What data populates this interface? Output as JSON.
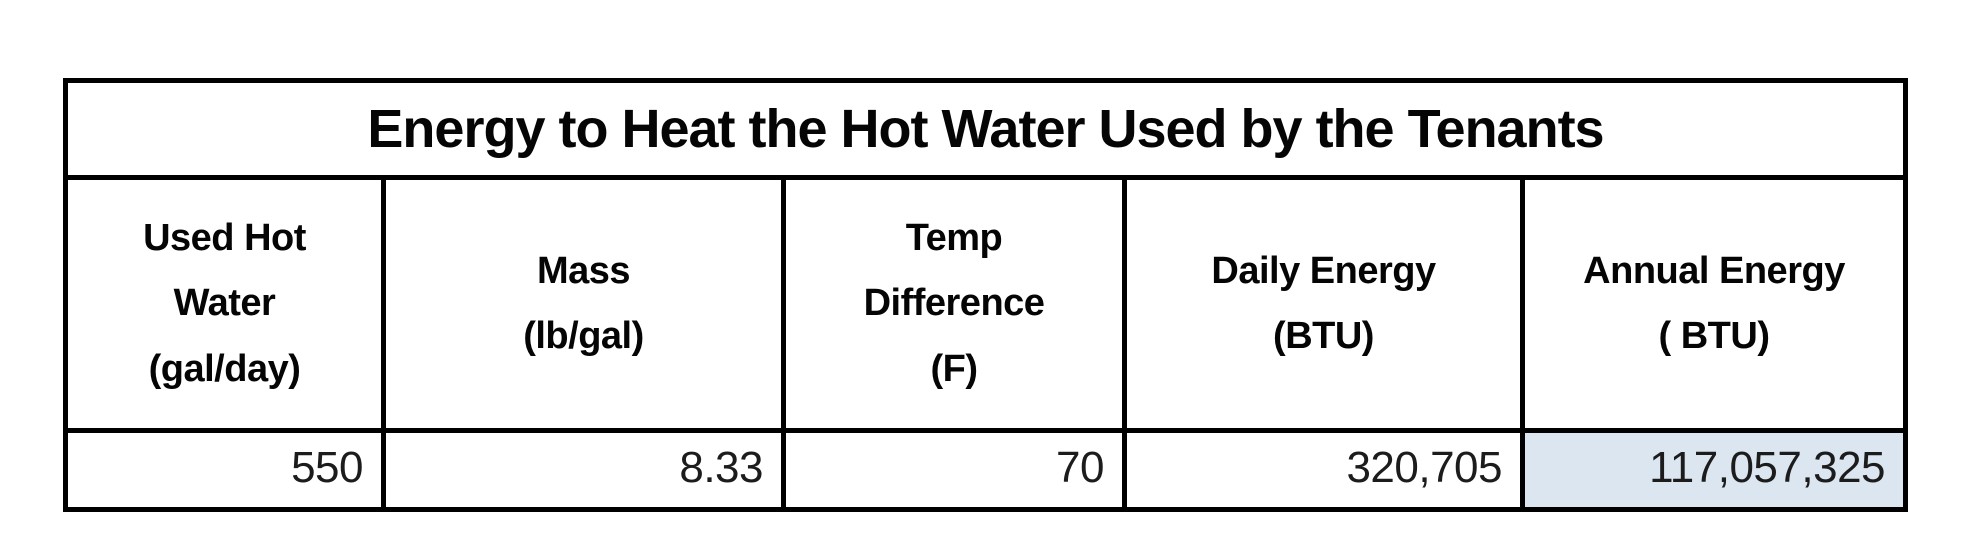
{
  "table": {
    "title": "Energy to Heat the Hot Water Used by the Tenants",
    "headers": [
      "Used Hot\nWater\n(gal/day)",
      "Mass\n(lb/gal)",
      "Temp\nDifference\n(F)",
      "Daily Energy\n(BTU)",
      "Annual Energy\n( BTU)"
    ],
    "values": [
      "550",
      "8.33",
      "70",
      "320,705",
      "117,057,325"
    ]
  },
  "colors": {
    "highlight_cell": "#dce6f1",
    "border": "#000000",
    "text": "#050505"
  }
}
